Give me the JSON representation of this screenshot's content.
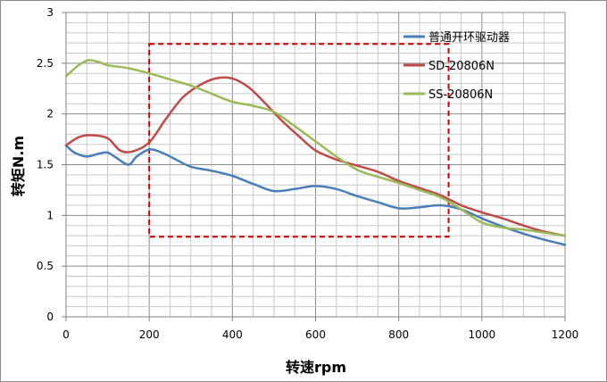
{
  "chart_data": {
    "type": "line",
    "xlabel": "转速rpm",
    "ylabel": "转矩N.m",
    "xlim": [
      0,
      1200
    ],
    "ylim": [
      0,
      3
    ],
    "x_ticks": [
      "0",
      "200",
      "400",
      "600",
      "800",
      "1000",
      "1200"
    ],
    "y_ticks": [
      "0",
      "0.5",
      "1",
      "1.5",
      "2",
      "2.5",
      "3"
    ],
    "grid": true,
    "legend_position": "top-right",
    "series": [
      {
        "name": "普通开环驱动器",
        "color": "#4a7ebb",
        "points": [
          [
            0,
            1.69
          ],
          [
            20,
            1.62
          ],
          [
            50,
            1.58
          ],
          [
            80,
            1.61
          ],
          [
            100,
            1.62
          ],
          [
            120,
            1.57
          ],
          [
            150,
            1.5
          ],
          [
            170,
            1.58
          ],
          [
            200,
            1.65
          ],
          [
            230,
            1.62
          ],
          [
            260,
            1.56
          ],
          [
            300,
            1.48
          ],
          [
            350,
            1.44
          ],
          [
            400,
            1.39
          ],
          [
            450,
            1.31
          ],
          [
            500,
            1.24
          ],
          [
            550,
            1.26
          ],
          [
            600,
            1.29
          ],
          [
            650,
            1.26
          ],
          [
            700,
            1.19
          ],
          [
            750,
            1.13
          ],
          [
            800,
            1.07
          ],
          [
            850,
            1.08
          ],
          [
            900,
            1.1
          ],
          [
            950,
            1.06
          ],
          [
            1000,
            0.97
          ],
          [
            1050,
            0.89
          ],
          [
            1100,
            0.82
          ],
          [
            1150,
            0.76
          ],
          [
            1200,
            0.71
          ]
        ]
      },
      {
        "name": "SD-20806N",
        "color": "#be4b48",
        "points": [
          [
            0,
            1.69
          ],
          [
            30,
            1.77
          ],
          [
            60,
            1.79
          ],
          [
            100,
            1.76
          ],
          [
            130,
            1.64
          ],
          [
            160,
            1.63
          ],
          [
            200,
            1.72
          ],
          [
            240,
            1.95
          ],
          [
            280,
            2.16
          ],
          [
            320,
            2.28
          ],
          [
            360,
            2.35
          ],
          [
            400,
            2.35
          ],
          [
            440,
            2.26
          ],
          [
            480,
            2.1
          ],
          [
            520,
            1.93
          ],
          [
            560,
            1.78
          ],
          [
            600,
            1.64
          ],
          [
            650,
            1.55
          ],
          [
            700,
            1.49
          ],
          [
            750,
            1.43
          ],
          [
            800,
            1.34
          ],
          [
            850,
            1.27
          ],
          [
            900,
            1.2
          ],
          [
            950,
            1.1
          ],
          [
            1000,
            1.03
          ],
          [
            1050,
            0.97
          ],
          [
            1100,
            0.9
          ],
          [
            1150,
            0.84
          ],
          [
            1200,
            0.8
          ]
        ]
      },
      {
        "name": "SS-20806N",
        "color": "#9bbb59",
        "points": [
          [
            0,
            2.37
          ],
          [
            30,
            2.48
          ],
          [
            55,
            2.53
          ],
          [
            80,
            2.51
          ],
          [
            100,
            2.48
          ],
          [
            150,
            2.45
          ],
          [
            200,
            2.4
          ],
          [
            250,
            2.34
          ],
          [
            300,
            2.28
          ],
          [
            350,
            2.2
          ],
          [
            400,
            2.12
          ],
          [
            450,
            2.08
          ],
          [
            500,
            2.02
          ],
          [
            550,
            1.88
          ],
          [
            600,
            1.73
          ],
          [
            650,
            1.58
          ],
          [
            700,
            1.45
          ],
          [
            750,
            1.38
          ],
          [
            800,
            1.32
          ],
          [
            850,
            1.25
          ],
          [
            900,
            1.18
          ],
          [
            950,
            1.06
          ],
          [
            1000,
            0.93
          ],
          [
            1050,
            0.88
          ],
          [
            1100,
            0.86
          ],
          [
            1150,
            0.83
          ],
          [
            1200,
            0.8
          ]
        ]
      }
    ],
    "annotations": [
      {
        "type": "dashed-rectangle",
        "color": "#cc0000",
        "x_range": [
          200,
          920
        ],
        "y_range": [
          0.79,
          2.69
        ]
      }
    ]
  }
}
